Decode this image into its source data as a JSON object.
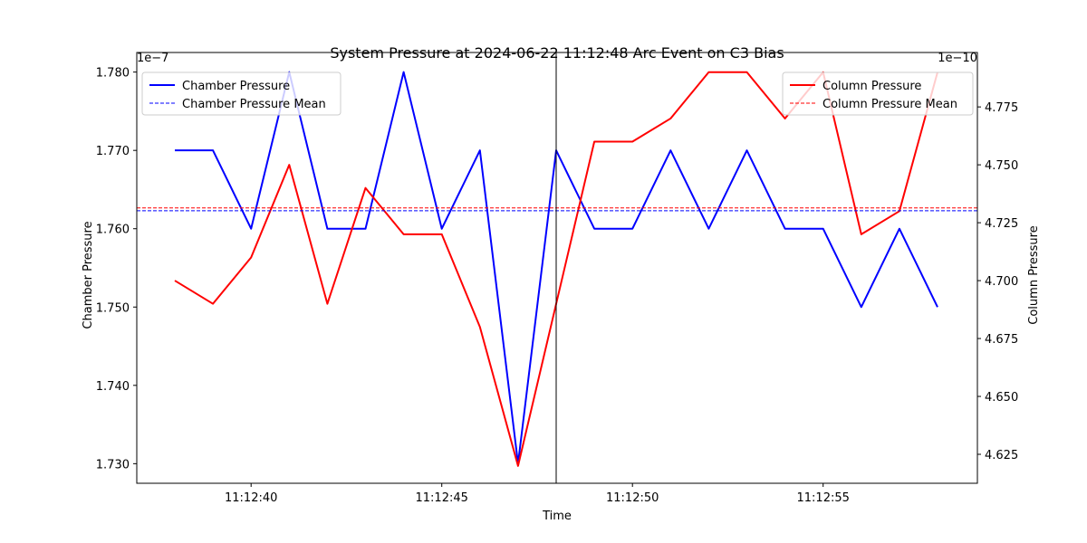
{
  "chart_data": {
    "type": "line",
    "title": "System Pressure at 2024-06-22 11:12:48 Arc Event on C3 Bias",
    "xlabel": "Time",
    "ylabel_left": "Chamber Pressure",
    "ylabel_right": "Column Pressure",
    "left_scale_label": "1e−7",
    "right_scale_label": "1e−10",
    "x": [
      "11:12:38",
      "11:12:39",
      "11:12:40",
      "11:12:41",
      "11:12:42",
      "11:12:43",
      "11:12:44",
      "11:12:45",
      "11:12:46",
      "11:12:47",
      "11:12:48",
      "11:12:49",
      "11:12:50",
      "11:12:51",
      "11:12:52",
      "11:12:53",
      "11:12:54",
      "11:12:55",
      "11:12:56",
      "11:12:57",
      "11:12:58"
    ],
    "x_ticks": [
      "11:12:40",
      "11:12:45",
      "11:12:50",
      "11:12:55"
    ],
    "event_time": "11:12:48",
    "left_ylim": [
      1.7275,
      1.7825
    ],
    "left_ticks": [
      "1.730",
      "1.740",
      "1.750",
      "1.760",
      "1.770",
      "1.780"
    ],
    "right_ylim": [
      4.6125,
      4.7985
    ],
    "right_ticks": [
      "4.625",
      "4.650",
      "4.675",
      "4.700",
      "4.725",
      "4.750",
      "4.775"
    ],
    "series": [
      {
        "name": "Chamber Pressure",
        "axis": "left",
        "color": "#0000ff",
        "style": "solid",
        "values": [
          1.77,
          1.77,
          1.76,
          1.78,
          1.76,
          1.76,
          1.78,
          1.76,
          1.77,
          1.73,
          1.77,
          1.76,
          1.76,
          1.77,
          1.76,
          1.77,
          1.76,
          1.76,
          1.75,
          1.76,
          1.75
        ]
      },
      {
        "name": "Column Pressure",
        "axis": "right",
        "color": "#ff0000",
        "style": "solid",
        "values": [
          4.7,
          4.69,
          4.71,
          4.75,
          4.69,
          4.74,
          4.72,
          4.72,
          4.68,
          4.62,
          4.69,
          4.76,
          4.76,
          4.77,
          4.79,
          4.79,
          4.77,
          4.79,
          4.72,
          4.73,
          4.79
        ]
      }
    ],
    "mean_lines": [
      {
        "name": "Chamber Pressure Mean",
        "axis": "left",
        "value": 1.7623,
        "color": "#0000ff",
        "style": "dashed"
      },
      {
        "name": "Column Pressure Mean",
        "axis": "right",
        "value": 4.7314,
        "color": "#ff0000",
        "style": "dashed"
      }
    ],
    "legend_left": [
      "Chamber Pressure",
      "Chamber Pressure Mean"
    ],
    "legend_right": [
      "Column Pressure",
      "Column Pressure Mean"
    ],
    "legend_placement": [
      "top-left",
      "top-right"
    ],
    "grid": false
  }
}
